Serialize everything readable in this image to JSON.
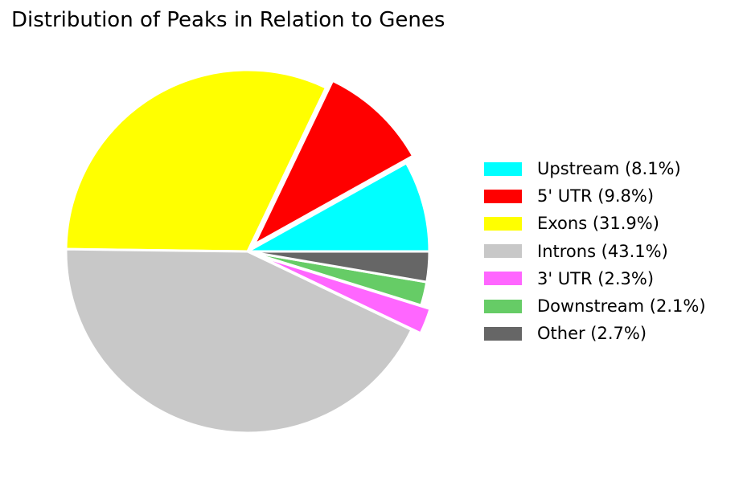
{
  "chart_data": {
    "type": "pie",
    "title": "Distribution of Peaks in Relation to Genes",
    "slices": [
      {
        "label": "Upstream (8.1%)",
        "value": 8.1,
        "color": "#00ffff",
        "exploded": false
      },
      {
        "label": "5' UTR (9.8%)",
        "value": 9.8,
        "color": "#ff0000",
        "exploded": true
      },
      {
        "label": "Exons (31.9%)",
        "value": 31.9,
        "color": "#ffff00",
        "exploded": false
      },
      {
        "label": "Introns (43.1%)",
        "value": 43.1,
        "color": "#c8c8c8",
        "exploded": false
      },
      {
        "label": "3' UTR (2.3%)",
        "value": 2.3,
        "color": "#ff66ff",
        "exploded": true
      },
      {
        "label": "Downstream (2.1%)",
        "value": 2.1,
        "color": "#66cc66",
        "exploded": false
      },
      {
        "label": "Other (2.7%)",
        "value": 2.7,
        "color": "#666666",
        "exploded": false
      }
    ],
    "start_angle_deg": 0,
    "direction": "counterclockwise",
    "legend_position": "right",
    "slice_edge_color": "#ffffff"
  }
}
